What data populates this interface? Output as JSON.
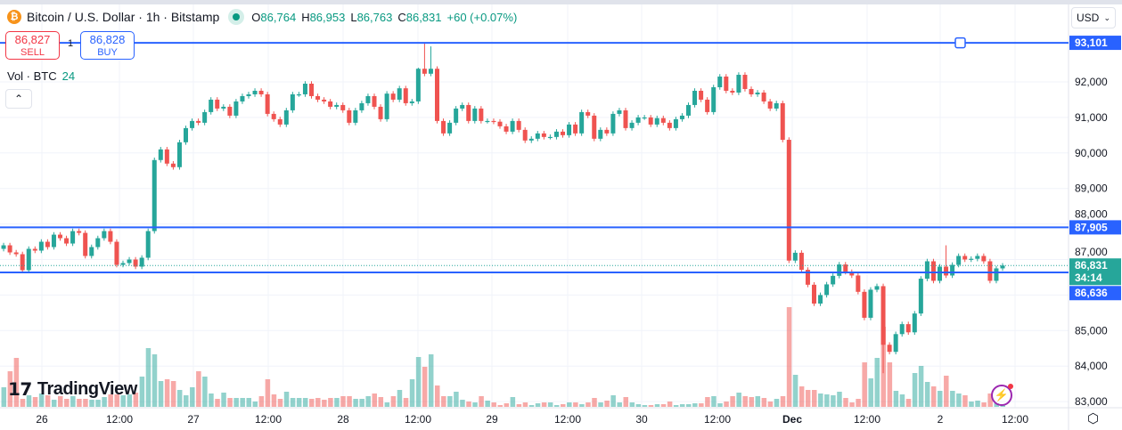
{
  "header": {
    "symbol_icon": "bitcoin-icon",
    "title": "Bitcoin / U.S. Dollar · 1h · Bitstamp",
    "market_status": "market-open-dot",
    "ohlc": {
      "o_label": "O",
      "o": "86,764",
      "h_label": "H",
      "h": "86,953",
      "l_label": "L",
      "l": "86,763",
      "c_label": "C",
      "c": "86,831",
      "change": "+60 (+0.07%)"
    }
  },
  "trade": {
    "sell_price": "86,827",
    "sell_label": "SELL",
    "quantity": "1",
    "buy_price": "86,828",
    "buy_label": "BUY"
  },
  "volume_legend": {
    "label": "Vol · BTC",
    "value": "24"
  },
  "currency": {
    "selected": "USD"
  },
  "logo": "TradingView",
  "colors": {
    "up": "#26a69a",
    "down": "#ef5350",
    "line": "#2962ff",
    "current": "#26a69a"
  },
  "chart_data": {
    "type": "candlestick",
    "interval": "1h",
    "y_ticks": [
      "92,000",
      "91,000",
      "90,000",
      "89,000",
      "88,000",
      "87,000",
      "85,000",
      "84,000",
      "83,000"
    ],
    "y_tick_values": [
      92000,
      91000,
      90000,
      89000,
      88000,
      87000,
      85000,
      84000,
      83000
    ],
    "x_ticks": [
      "26",
      "12:00",
      "27",
      "12:00",
      "28",
      "12:00",
      "29",
      "12:00",
      "30",
      "12:00",
      "Dec",
      "12:00",
      "2",
      "12:00"
    ],
    "horizontal_lines": [
      {
        "value": 93101,
        "label": "93,101"
      },
      {
        "value": 87905,
        "label": "87,905"
      },
      {
        "value": 86636,
        "label": "86,636"
      }
    ],
    "current_price": {
      "value": 86831,
      "label": "86,831",
      "countdown": "34:14"
    },
    "first_open": 87300,
    "closes": [
      87400,
      87200,
      87150,
      86700,
      87300,
      87250,
      87500,
      87350,
      87700,
      87600,
      87450,
      87800,
      87750,
      87100,
      87350,
      87600,
      87800,
      87500,
      86850,
      86900,
      87000,
      86800,
      87050,
      87800,
      89800,
      90100,
      89700,
      89600,
      90300,
      90700,
      90900,
      90850,
      91150,
      91500,
      91250,
      91300,
      91050,
      91450,
      91600,
      91650,
      91750,
      91650,
      91100,
      90950,
      90800,
      91200,
      91650,
      91650,
      91950,
      91600,
      91500,
      91450,
      91300,
      91350,
      91200,
      90850,
      91200,
      91400,
      91600,
      91300,
      90950,
      91670,
      91500,
      91820,
      91400,
      91450,
      92370,
      92230,
      92370,
      90900,
      90550,
      90850,
      91250,
      91350,
      90900,
      91250,
      90900,
      90900,
      90880,
      90750,
      90600,
      90900,
      90650,
      90350,
      90400,
      90550,
      90450,
      90450,
      90600,
      90500,
      90800,
      90550,
      91150,
      91050,
      90400,
      90650,
      90550,
      91100,
      91200,
      90700,
      90850,
      91000,
      91000,
      90800,
      90980,
      90850,
      90700,
      90950,
      91050,
      91350,
      91750,
      91500,
      91150,
      91850,
      92150,
      91750,
      91700,
      92200,
      91800,
      91650,
      91700,
      91450,
      91250,
      91400,
      90370,
      86970,
      87190,
      86710,
      86290,
      85760,
      86000,
      86300,
      86540,
      86860,
      86650,
      86550,
      86090,
      85360,
      86150,
      86250,
      84600,
      84400,
      84900,
      85180,
      84950,
      85480,
      86460,
      86950,
      86400,
      86800,
      86550,
      86850,
      87100,
      87000,
      87020,
      87100,
      86950,
      86400,
      86750,
      86831
    ],
    "notable_wicks": [
      {
        "index": 66,
        "high": 92400
      },
      {
        "index": 67,
        "high": 93101
      },
      {
        "index": 68,
        "high": 93000
      },
      {
        "index": 140,
        "low": 83800
      },
      {
        "index": 150,
        "high": 87400
      }
    ],
    "volume_btc": [
      176,
      320,
      440,
      72,
      104,
      88,
      120,
      104,
      64,
      96,
      72,
      96,
      72,
      72,
      64,
      64,
      88,
      112,
      112,
      104,
      112,
      128,
      272,
      528,
      472,
      232,
      248,
      232,
      152,
      104,
      176,
      320,
      272,
      120,
      72,
      128,
      80,
      80,
      80,
      80,
      48,
      96,
      248,
      112,
      72,
      136,
      80,
      80,
      80,
      72,
      80,
      64,
      80,
      80,
      96,
      96,
      72,
      72,
      96,
      120,
      88,
      40,
      96,
      152,
      80,
      248,
      448,
      360,
      472,
      192,
      96,
      96,
      136,
      64,
      48,
      40,
      96,
      56,
      40,
      16,
      32,
      88,
      24,
      40,
      16,
      32,
      40,
      40,
      16,
      24,
      40,
      40,
      24,
      40,
      80,
      40,
      56,
      104,
      40,
      88,
      40,
      24,
      16,
      16,
      24,
      24,
      48,
      16,
      24,
      24,
      32,
      32,
      88,
      96,
      32,
      48,
      96,
      128,
      96,
      88,
      96,
      80,
      48,
      72,
      96,
      896,
      288,
      184,
      152,
      152,
      120,
      112,
      104,
      136,
      80,
      40,
      72,
      400,
      256,
      440,
      720,
      400,
      144,
      112,
      72,
      304,
      368,
      224,
      184,
      144,
      280,
      144,
      120,
      104,
      48,
      56,
      40,
      120,
      32,
      24
    ]
  }
}
